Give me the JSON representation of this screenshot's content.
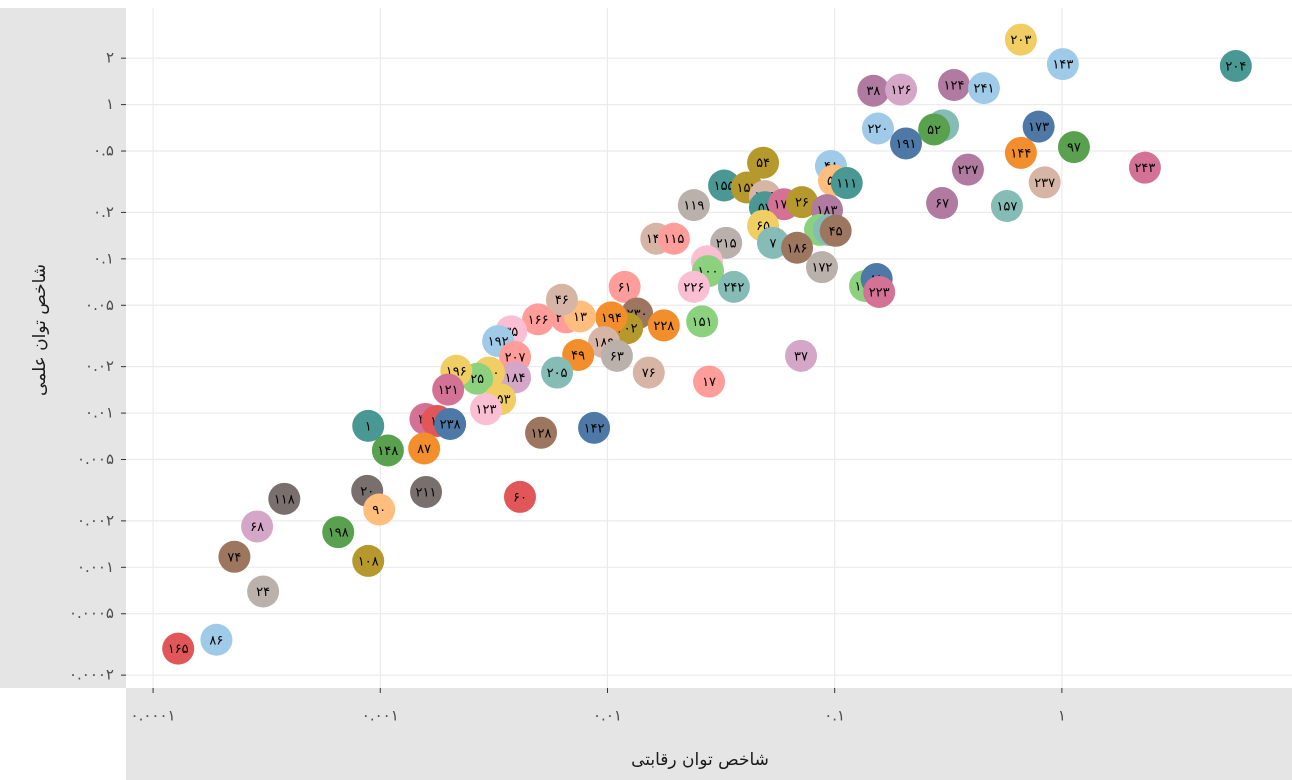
{
  "chart_data": {
    "type": "scatter",
    "x_label": "شاخص توان رقابتی",
    "y_label": "شاخص توان علمی",
    "log_x": true,
    "log_y": true,
    "grid": true,
    "xlim": [
      7.6e-05,
      10.3
    ],
    "ylim": [
      0.000165,
      4.23
    ],
    "xticks": [
      {
        "value": 0.0001,
        "label": "۰.۰۰۰۱"
      },
      {
        "value": 0.001,
        "label": "۰.۰۰۱"
      },
      {
        "value": 0.01,
        "label": "۰.۰۱"
      },
      {
        "value": 0.1,
        "label": "۰.۱"
      },
      {
        "value": 1,
        "label": "۱"
      }
    ],
    "yticks": [
      {
        "value": 2,
        "label": "۲"
      },
      {
        "value": 1,
        "label": "۱"
      },
      {
        "value": 0.5,
        "label": "۰.۵"
      },
      {
        "value": 0.2,
        "label": "۰.۲"
      },
      {
        "value": 0.1,
        "label": "۰.۱"
      },
      {
        "value": 0.05,
        "label": "۰.۰۵"
      },
      {
        "value": 0.02,
        "label": "۰.۰۲"
      },
      {
        "value": 0.01,
        "label": "۰.۰۱"
      },
      {
        "value": 0.005,
        "label": "۰.۰۰۵"
      },
      {
        "value": 0.002,
        "label": "۰.۰۰۲"
      },
      {
        "value": 0.001,
        "label": "۰.۰۰۱"
      },
      {
        "value": 0.0005,
        "label": "۰.۰۰۰۵"
      },
      {
        "value": 0.0002,
        "label": "۰.۰۰۰۲"
      }
    ],
    "point_labels": [
      "۲۰۳",
      "۱۴۳",
      "۲۰۴",
      "۳۸",
      "۱۲۶",
      "۱۲۴",
      "۲۴۱",
      "۵۸",
      "۵۲",
      "۲۲۰",
      "۱۹۱",
      "۱۷۳",
      "۹۷",
      "۱۴۴",
      "۲۲۷",
      "۲۳۷",
      "۲۴۳",
      "۶۷",
      "۱۵۷",
      "۴۸",
      "۵۱",
      "۱۱۱",
      "۵۴",
      "۱۵۵",
      "۱۵۲",
      "۱۴۵",
      "۵۷",
      "۱۷۷",
      "۲۶",
      "۱۸۳",
      "۶۵",
      "۵۳",
      "۶۲",
      "۴۵",
      "۷",
      "۱۸۶",
      "۱۱۹",
      "۱۴۰",
      "۱۱۵",
      "۲۱۵",
      "۶۶",
      "۱۰۰",
      "۲۲۶",
      "۲۴۲",
      "۱۷۲",
      "۱۹۹",
      "۸۱",
      "۲۲۳",
      "۶۱",
      "۲۳۰",
      "۲۰۲",
      "۱۹۴",
      "۲۲۸",
      "۱۵۱",
      "۲۰۶",
      "۱۳",
      "۴۶",
      "۱۶۶",
      "۱۸۹",
      "۶۳",
      "۴۹",
      "۷۶",
      "۱۷",
      "۳۷",
      "۳۵",
      "۱۹۲",
      "۲۰۷",
      "۲۰۵",
      "۱۸۴",
      "۱۱۰",
      "۲۵",
      "۱۹۶",
      "۱۲۱",
      "۱۵۳",
      "۱۲۳",
      "۳۴",
      "۱۱",
      "۲۳۸",
      "۱",
      "۱۴۸",
      "۸۷",
      "۱۲۸",
      "۱۴۲",
      "۱۱۸",
      "۲۰",
      "۹۰",
      "۲۱۱",
      "۶۰",
      "۶۸",
      "۱۹۸",
      "۷۴",
      "۱۰۸",
      "۲۴",
      "۱۶۵",
      "۸۶"
    ],
    "x": [
      0.66,
      1.01,
      5.83,
      0.148,
      0.196,
      0.335,
      0.454,
      0.3,
      0.274,
      0.155,
      0.206,
      0.79,
      1.13,
      0.66,
      0.386,
      0.84,
      2.32,
      0.297,
      0.573,
      0.0963,
      0.0993,
      0.113,
      0.0484,
      0.0326,
      0.0411,
      0.0493,
      0.0493,
      0.0598,
      0.0718,
      0.0925,
      0.0484,
      0.0862,
      0.0944,
      0.101,
      0.0535,
      0.0683,
      0.024,
      0.0164,
      0.0196,
      0.0333,
      0.0274,
      0.0277,
      0.024,
      0.036,
      0.0879,
      0.136,
      0.153,
      0.157,
      0.0119,
      0.0135,
      0.0122,
      0.0104,
      0.0177,
      0.0261,
      0.00657,
      0.00757,
      0.0063,
      0.00495,
      0.00966,
      0.011,
      0.00743,
      0.0152,
      0.028,
      0.0711,
      0.00377,
      0.0033,
      0.00392,
      0.006,
      0.00392,
      0.00301,
      0.00267,
      0.00216,
      0.00199,
      0.00337,
      0.00292,
      0.00158,
      0.00178,
      0.00203,
      0.000885,
      0.00108,
      0.00156,
      0.0051,
      0.00873,
      0.000378,
      0.000876,
      0.000989,
      0.00159,
      0.00412,
      0.000287,
      0.000653,
      0.000228,
      0.000885,
      0.000305,
      0.000129,
      0.00019
    ],
    "values": [
      2.64,
      1.83,
      1.78,
      1.23,
      1.25,
      1.34,
      1.28,
      0.734,
      0.69,
      0.7,
      0.56,
      0.72,
      0.53,
      0.486,
      0.379,
      0.313,
      0.39,
      0.23,
      0.22,
      0.4,
      0.322,
      0.31,
      0.42,
      0.299,
      0.29,
      0.255,
      0.216,
      0.226,
      0.233,
      0.207,
      0.164,
      0.154,
      0.154,
      0.152,
      0.127,
      0.118,
      0.223,
      0.135,
      0.135,
      0.127,
      0.0964,
      0.0832,
      0.0658,
      0.0658,
      0.0883,
      0.0667,
      0.074,
      0.061,
      0.0658,
      0.0442,
      0.0355,
      0.0417,
      0.037,
      0.0393,
      0.0417,
      0.0423,
      0.0543,
      0.0405,
      0.0288,
      0.0235,
      0.0238,
      0.0183,
      0.016,
      0.0235,
      0.0339,
      0.0293,
      0.0231,
      0.0183,
      0.017,
      0.0183,
      0.0167,
      0.0188,
      0.0142,
      0.0123,
      0.0106,
      0.00916,
      0.00889,
      0.0085,
      0.00826,
      0.00572,
      0.00589,
      0.00745,
      0.00802,
      0.00278,
      0.00313,
      0.00237,
      0.00308,
      0.00286,
      0.00184,
      0.00169,
      0.00117,
      0.0011,
      0.000697,
      0.000297,
      0.000339
    ],
    "colors": [
      "#f1ce63",
      "#a0cbe8",
      "#499894",
      "#b07aa1",
      "#d4a6c8",
      "#b07aa1",
      "#a0cbe8",
      "#86bcb6",
      "#59a14f",
      "#a0cbe8",
      "#4e79a7",
      "#4e79a7",
      "#59a14f",
      "#f28e2b",
      "#b07aa1",
      "#d7b5a6",
      "#d37295",
      "#b07aa1",
      "#86bcb6",
      "#a0cbe8",
      "#ffbe7d",
      "#499894",
      "#b6992d",
      "#499894",
      "#b6992d",
      "#d7b5a6",
      "#499894",
      "#d37295",
      "#b6992d",
      "#b07aa1",
      "#f1ce63",
      "#8cd17d",
      "#86bcb6",
      "#9d7660",
      "#86bcb6",
      "#9d7660",
      "#bab0ac",
      "#d7b5a6",
      "#ff9d9a",
      "#bab0ac",
      "#fabfd2",
      "#8cd17d",
      "#fabfd2",
      "#86bcb6",
      "#bab0ac",
      "#8cd17d",
      "#4e79a7",
      "#d37295",
      "#ff9d9a",
      "#9d7660",
      "#b6992d",
      "#f28e2b",
      "#f28e2b",
      "#8cd17d",
      "#ff9d9a",
      "#ffbe7d",
      "#d7b5a6",
      "#ff9d9a",
      "#d7b5a6",
      "#bab0ac",
      "#f28e2b",
      "#d7b5a6",
      "#ff9d9a",
      "#d4a6c8",
      "#fabfd2",
      "#a0cbe8",
      "#ff9d9a",
      "#86bcb6",
      "#d4a6c8",
      "#f1ce63",
      "#8cd17d",
      "#f1ce63",
      "#d37295",
      "#f1ce63",
      "#fabfd2",
      "#d37295",
      "#e15759",
      "#4e79a7",
      "#499894",
      "#59a14f",
      "#f28e2b",
      "#9d7660",
      "#4e79a7",
      "#79706e",
      "#79706e",
      "#ffbe7d",
      "#79706e",
      "#e15759",
      "#d4a6c8",
      "#59a14f",
      "#9d7660",
      "#b6992d",
      "#bab0ac",
      "#e15759",
      "#a0cbe8"
    ]
  }
}
